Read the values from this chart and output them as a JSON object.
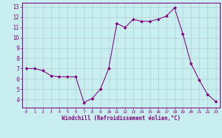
{
  "x": [
    0,
    1,
    2,
    3,
    4,
    5,
    6,
    7,
    8,
    9,
    10,
    11,
    12,
    13,
    14,
    15,
    16,
    17,
    18,
    19,
    20,
    21,
    22,
    23
  ],
  "y": [
    7.0,
    7.0,
    6.8,
    6.3,
    6.2,
    6.2,
    6.2,
    3.7,
    4.1,
    5.0,
    7.0,
    11.4,
    11.0,
    11.8,
    11.6,
    11.6,
    11.8,
    12.1,
    12.9,
    10.4,
    7.5,
    5.9,
    4.5,
    3.8
  ],
  "line_color": "#800080",
  "marker": "D",
  "marker_size": 2.0,
  "bg_color": "#c8eef0",
  "grid_color": "#b0cccc",
  "xlabel": "Windchill (Refroidissement éolien,°C)",
  "xlabel_color": "#800080",
  "tick_color": "#800080",
  "spine_color": "#800080",
  "ylim": [
    3.2,
    13.4
  ],
  "xlim": [
    -0.5,
    23.5
  ],
  "yticks": [
    4,
    5,
    6,
    7,
    8,
    9,
    10,
    11,
    12,
    13
  ],
  "xticks": [
    0,
    1,
    2,
    3,
    4,
    5,
    6,
    7,
    8,
    9,
    10,
    11,
    12,
    13,
    14,
    15,
    16,
    17,
    18,
    19,
    20,
    21,
    22,
    23
  ],
  "figsize": [
    3.2,
    2.0
  ],
  "dpi": 100
}
